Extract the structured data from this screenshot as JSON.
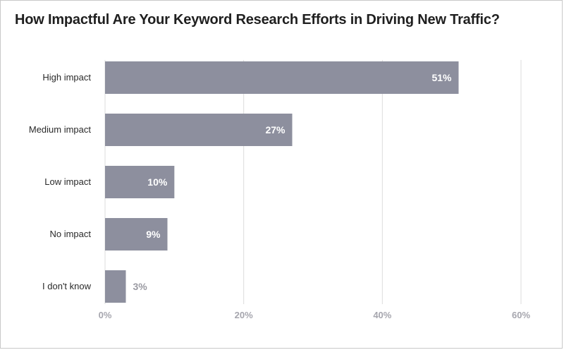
{
  "chart_data": {
    "type": "bar",
    "orientation": "horizontal",
    "title": "How Impactful Are Your Keyword Research Efforts in Driving New Traffic?",
    "categories": [
      "High impact",
      "Medium impact",
      "Low impact",
      "No impact",
      "I don't know"
    ],
    "values": [
      51,
      27,
      10,
      9,
      3
    ],
    "value_labels": [
      "51%",
      "27%",
      "10%",
      "9%",
      "3%"
    ],
    "xlim": [
      0,
      60
    ],
    "xticks": [
      0,
      20,
      40,
      60
    ],
    "xtick_labels": [
      "0%",
      "20%",
      "40%",
      "60%"
    ],
    "grid": true,
    "bar_color": "#8d8f9e",
    "grid_color": "#dcdcdc"
  }
}
